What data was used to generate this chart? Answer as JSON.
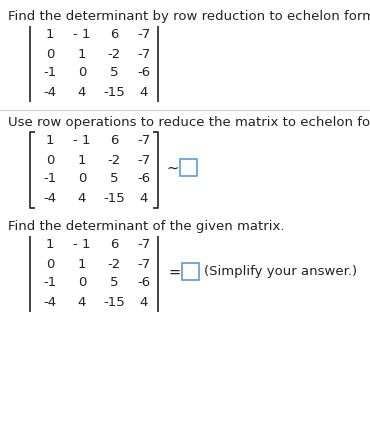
{
  "title1": "Find the determinant by row reduction to echelon form.",
  "title2": "Use row operations to reduce the matrix to echelon form.",
  "title3": "Find the determinant of the given matrix.",
  "matrix_rows": [
    [
      "1",
      "- 1",
      "6",
      "-7"
    ],
    [
      "0",
      "1",
      "-2",
      "-7"
    ],
    [
      "-1",
      "0",
      "5",
      "-6"
    ],
    [
      "-4",
      "4",
      "-15",
      "4"
    ]
  ],
  "tilde_symbol": "~",
  "equals_symbol": "=",
  "simplify_text": "(Simplify your answer.)",
  "bg_color": "#ffffff",
  "text_color": "#222222",
  "blue_color": "#5b9bd5",
  "font_size": 9.5,
  "divider_color": "#cccccc"
}
